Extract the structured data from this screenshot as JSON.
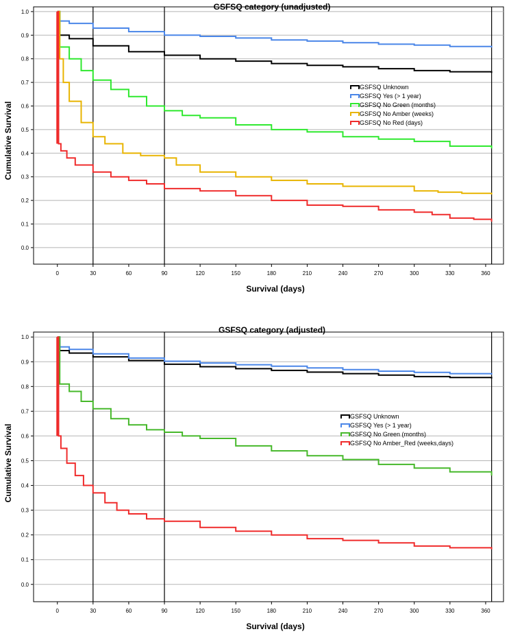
{
  "chart_data": [
    {
      "type": "line",
      "title": "GSFSQ category (unadjusted)",
      "xlabel": "Survival (days)",
      "ylabel": "Cumulative  Survival",
      "xlim": [
        -20,
        375
      ],
      "ylim": [
        -0.07,
        1.02
      ],
      "xticks": [
        0,
        30,
        60,
        90,
        120,
        150,
        180,
        210,
        240,
        270,
        300,
        330,
        360
      ],
      "yticks": [
        "0.0",
        "0.1",
        "0.2",
        "0.3",
        "0.4",
        "0.5",
        "0.6",
        "0.7",
        "0.8",
        "0.9",
        "1.0"
      ],
      "reference_lines_x": [
        30,
        90,
        365
      ],
      "grid": "horizontal",
      "legend_position": "center-right",
      "series": [
        {
          "name": "GSFSQ Unknown",
          "color": "#000000",
          "x": [
            0,
            2,
            10,
            30,
            60,
            90,
            120,
            150,
            180,
            210,
            240,
            270,
            300,
            330,
            365
          ],
          "y": [
            1.0,
            0.9,
            0.885,
            0.855,
            0.83,
            0.815,
            0.8,
            0.79,
            0.78,
            0.772,
            0.766,
            0.758,
            0.75,
            0.745,
            0.74
          ]
        },
        {
          "name": "GSFSQ Yes (> 1 year)",
          "color": "#4a86e8",
          "x": [
            0,
            2,
            10,
            30,
            60,
            90,
            120,
            150,
            180,
            210,
            240,
            270,
            300,
            330,
            365
          ],
          "y": [
            1.0,
            0.96,
            0.95,
            0.93,
            0.915,
            0.9,
            0.895,
            0.888,
            0.88,
            0.875,
            0.868,
            0.862,
            0.858,
            0.852,
            0.848
          ]
        },
        {
          "name": "GSFSQ No Green (months)",
          "color": "#2ee82e",
          "x": [
            0,
            2,
            10,
            20,
            30,
            45,
            60,
            75,
            90,
            105,
            120,
            150,
            180,
            210,
            240,
            270,
            300,
            330,
            365
          ],
          "y": [
            1.0,
            0.85,
            0.8,
            0.75,
            0.71,
            0.67,
            0.64,
            0.6,
            0.58,
            0.56,
            0.55,
            0.52,
            0.5,
            0.49,
            0.47,
            0.46,
            0.45,
            0.43,
            0.42
          ]
        },
        {
          "name": "GSFSQ No Amber (weeks)",
          "color": "#e8b400",
          "x": [
            0,
            2,
            5,
            10,
            20,
            30,
            40,
            55,
            70,
            90,
            100,
            120,
            150,
            180,
            210,
            240,
            270,
            300,
            320,
            340,
            365
          ],
          "y": [
            1.0,
            0.8,
            0.7,
            0.62,
            0.53,
            0.47,
            0.44,
            0.4,
            0.39,
            0.38,
            0.35,
            0.32,
            0.3,
            0.285,
            0.27,
            0.26,
            0.26,
            0.24,
            0.235,
            0.23,
            0.225
          ]
        },
        {
          "name": "GSFSQ No Red (days)",
          "color": "#ef2b2b",
          "x": [
            0,
            1,
            3,
            8,
            15,
            30,
            45,
            60,
            75,
            90,
            120,
            150,
            180,
            210,
            240,
            270,
            300,
            315,
            330,
            350,
            365
          ],
          "y": [
            1.0,
            0.44,
            0.41,
            0.38,
            0.35,
            0.32,
            0.3,
            0.285,
            0.27,
            0.25,
            0.24,
            0.22,
            0.2,
            0.18,
            0.175,
            0.16,
            0.15,
            0.14,
            0.125,
            0.12,
            0.11
          ]
        }
      ]
    },
    {
      "type": "line",
      "title": "GSFSQ category (adjusted)",
      "xlabel": "Survival (days)",
      "ylabel": "Cumulative  Survival",
      "xlim": [
        -20,
        375
      ],
      "ylim": [
        -0.07,
        1.02
      ],
      "xticks": [
        0,
        30,
        60,
        90,
        120,
        150,
        180,
        210,
        240,
        270,
        300,
        330,
        360
      ],
      "yticks": [
        "0.0",
        "0.1",
        "0.2",
        "0.3",
        "0.4",
        "0.5",
        "0.6",
        "0.7",
        "0.8",
        "0.9",
        "1.0"
      ],
      "reference_lines_x": [
        30,
        90,
        365
      ],
      "grid": "horizontal",
      "legend_position": "center-right",
      "series": [
        {
          "name": "GSFSQ Unknown",
          "color": "#000000",
          "x": [
            0,
            2,
            10,
            30,
            60,
            90,
            120,
            150,
            180,
            210,
            240,
            270,
            300,
            330,
            365
          ],
          "y": [
            1.0,
            0.945,
            0.935,
            0.92,
            0.905,
            0.89,
            0.88,
            0.872,
            0.865,
            0.858,
            0.852,
            0.846,
            0.84,
            0.836,
            0.832
          ]
        },
        {
          "name": "GSFSQ Yes (> 1 year)",
          "color": "#4a86e8",
          "x": [
            0,
            2,
            10,
            30,
            60,
            90,
            120,
            150,
            180,
            210,
            240,
            270,
            300,
            330,
            365
          ],
          "y": [
            1.0,
            0.96,
            0.95,
            0.932,
            0.915,
            0.902,
            0.895,
            0.888,
            0.882,
            0.875,
            0.868,
            0.862,
            0.857,
            0.852,
            0.848
          ]
        },
        {
          "name": "GSFSQ No Green (months)",
          "color": "#46b82a",
          "x": [
            0,
            2,
            10,
            20,
            30,
            45,
            60,
            75,
            90,
            105,
            120,
            150,
            180,
            210,
            240,
            270,
            300,
            330,
            365
          ],
          "y": [
            1.0,
            0.81,
            0.78,
            0.74,
            0.71,
            0.67,
            0.645,
            0.625,
            0.615,
            0.6,
            0.59,
            0.56,
            0.54,
            0.52,
            0.505,
            0.485,
            0.47,
            0.455,
            0.44
          ]
        },
        {
          "name": "GSFSQ No Amber_Red (weeks,days)",
          "color": "#ef2b2b",
          "x": [
            0,
            1,
            3,
            8,
            15,
            22,
            30,
            40,
            50,
            60,
            75,
            90,
            120,
            150,
            180,
            210,
            240,
            270,
            300,
            330,
            365
          ],
          "y": [
            1.0,
            0.6,
            0.55,
            0.49,
            0.44,
            0.4,
            0.37,
            0.33,
            0.3,
            0.285,
            0.265,
            0.255,
            0.23,
            0.215,
            0.2,
            0.185,
            0.178,
            0.168,
            0.155,
            0.148,
            0.142
          ]
        }
      ]
    }
  ]
}
